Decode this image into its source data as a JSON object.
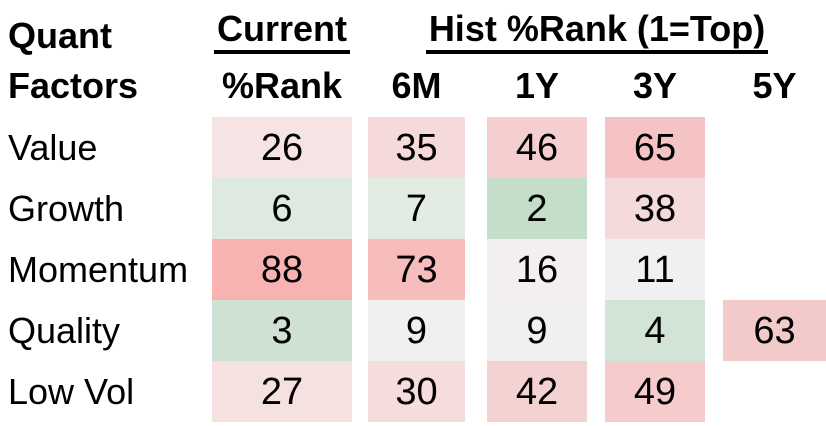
{
  "title": {
    "line1": "Quant",
    "line2": "Factors"
  },
  "headers": {
    "current": "Current",
    "current_sub": "%Rank",
    "hist": "Hist %Rank (1=Top)",
    "cols": [
      "6M",
      "1Y",
      "3Y",
      "5Y"
    ]
  },
  "rows": [
    {
      "label": "Value",
      "cells": [
        {
          "v": "26",
          "bg": "#f6e3e3"
        },
        {
          "v": "35",
          "bg": "#f6dada"
        },
        {
          "v": "46",
          "bg": "#f5cfcf"
        },
        {
          "v": "65",
          "bg": "#f5c3c3"
        },
        {
          "v": null,
          "bg": null
        }
      ]
    },
    {
      "label": "Growth",
      "cells": [
        {
          "v": "6",
          "bg": "#deeae1"
        },
        {
          "v": "7",
          "bg": "#e2ece3"
        },
        {
          "v": "2",
          "bg": "#c5dec9"
        },
        {
          "v": "38",
          "bg": "#f4dada"
        },
        {
          "v": null,
          "bg": null
        }
      ]
    },
    {
      "label": "Momentum",
      "cells": [
        {
          "v": "88",
          "bg": "#f8b2b1"
        },
        {
          "v": "73",
          "bg": "#f7bcbc"
        },
        {
          "v": "16",
          "bg": "#f3eeef"
        },
        {
          "v": "11",
          "bg": "#f0f0f1"
        },
        {
          "v": null,
          "bg": null
        }
      ]
    },
    {
      "label": "Quality",
      "cells": [
        {
          "v": "3",
          "bg": "#cfe1d2"
        },
        {
          "v": "9",
          "bg": "#f1f0f1"
        },
        {
          "v": "9",
          "bg": "#f1f0f1"
        },
        {
          "v": "4",
          "bg": "#d2e4d5"
        },
        {
          "v": "63",
          "bg": "#f2caca"
        }
      ]
    },
    {
      "label": "Low Vol",
      "cells": [
        {
          "v": "27",
          "bg": "#f6e1e1"
        },
        {
          "v": "30",
          "bg": "#f6dcdc"
        },
        {
          "v": "42",
          "bg": "#f5d2d2"
        },
        {
          "v": "49",
          "bg": "#f5cbcb"
        },
        {
          "v": null,
          "bg": null
        }
      ]
    }
  ],
  "colors": {
    "text": "#000000",
    "background": "#ffffff",
    "scale_low_green": "#c5dec9",
    "scale_mid_white": "#f1f0f1",
    "scale_high_red": "#f8b2b1"
  },
  "chart_data": {
    "type": "heatmap",
    "title": "Quant Factors - Hist %Rank (1=Top)",
    "row_labels": [
      "Value",
      "Growth",
      "Momentum",
      "Quality",
      "Low Vol"
    ],
    "col_labels": [
      "Current %Rank",
      "6M",
      "1Y",
      "3Y",
      "5Y"
    ],
    "values": [
      [
        26,
        35,
        46,
        65,
        null
      ],
      [
        6,
        7,
        2,
        38,
        null
      ],
      [
        88,
        73,
        16,
        11,
        null
      ],
      [
        3,
        9,
        9,
        4,
        63
      ],
      [
        27,
        30,
        42,
        49,
        null
      ]
    ],
    "value_range": [
      1,
      100
    ],
    "color_scale": "green (low/top rank) -> white (mid) -> red (high/bottom rank)",
    "legend_position": "none",
    "grid": false
  }
}
